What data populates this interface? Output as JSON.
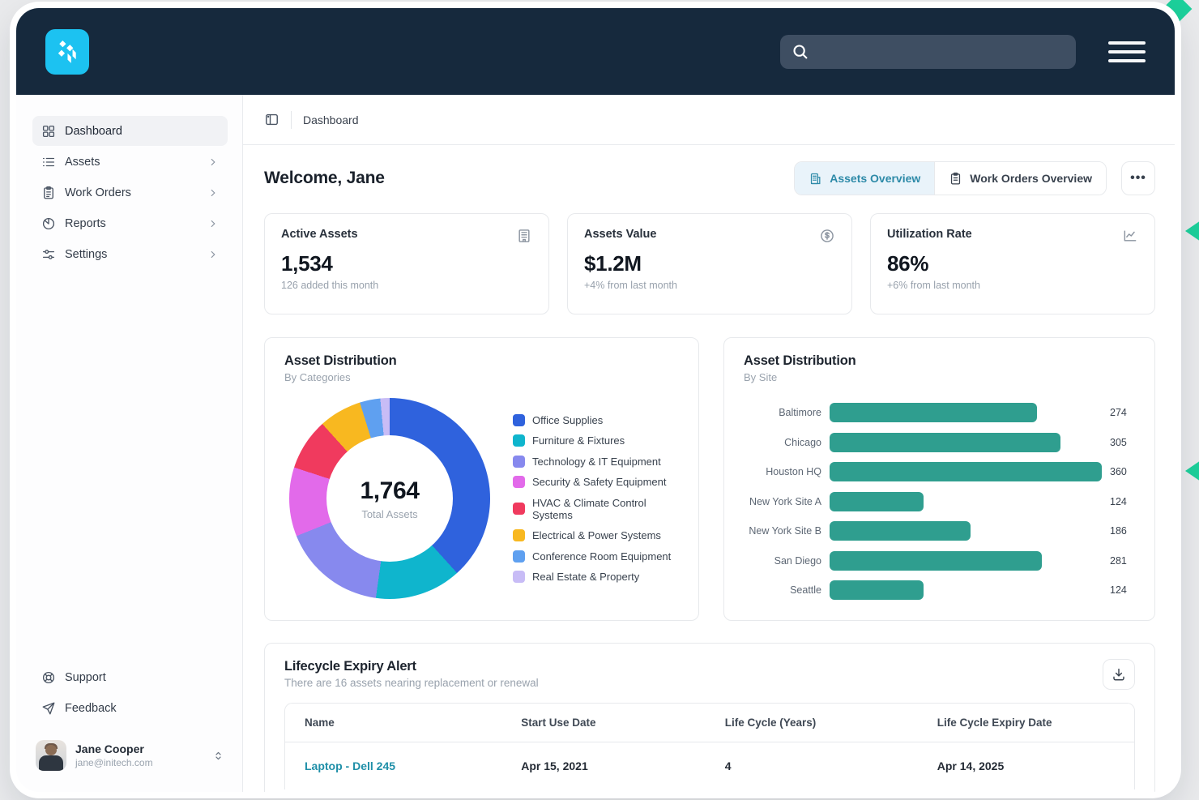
{
  "colors": {
    "topbar_navy": "#16293d",
    "logo_cyan": "#1cc2f1",
    "accent_teal_bar": "#2f9e8f",
    "link_teal": "#1f8fa8",
    "tab_active_bg": "#e9f3fa",
    "tab_active_text": "#2d8aa8",
    "deco_green": "#1cd09b"
  },
  "topbar": {
    "search": {
      "value": "",
      "placeholder": ""
    }
  },
  "sidebar": {
    "items": [
      {
        "label": "Dashboard",
        "icon": "grid-icon",
        "active": true,
        "chevron": false
      },
      {
        "label": "Assets",
        "icon": "list-icon",
        "active": false,
        "chevron": true
      },
      {
        "label": "Work Orders",
        "icon": "clipboard-icon",
        "active": false,
        "chevron": true
      },
      {
        "label": "Reports",
        "icon": "pie-chart-icon",
        "active": false,
        "chevron": true
      },
      {
        "label": "Settings",
        "icon": "sliders-icon",
        "active": false,
        "chevron": true
      }
    ],
    "footer_items": [
      {
        "label": "Support",
        "icon": "lifebuoy-icon"
      },
      {
        "label": "Feedback",
        "icon": "paper-plane-icon"
      }
    ],
    "user": {
      "name": "Jane Cooper",
      "email": "jane@initech.com"
    }
  },
  "breadcrumb": {
    "page": "Dashboard"
  },
  "header": {
    "welcome": "Welcome, Jane",
    "tabs": [
      {
        "label": "Assets Overview",
        "icon": "building-icon",
        "active": true
      },
      {
        "label": "Work Orders Overview",
        "icon": "clipboard-icon",
        "active": false
      }
    ],
    "more_label": "•••"
  },
  "stats": [
    {
      "title": "Active Assets",
      "value": "1,534",
      "subtitle": "126 added this month",
      "icon": "building-icon"
    },
    {
      "title": "Assets Value",
      "value": "$1.2M",
      "subtitle": "+4% from last month",
      "icon": "dollar-circle-icon"
    },
    {
      "title": "Utilization Rate",
      "value": "86%",
      "subtitle": "+6% from last month",
      "icon": "trend-chart-icon"
    }
  ],
  "donut_card": {
    "title": "Asset Distribution",
    "subtitle": "By Categories",
    "center_value": "1,764",
    "center_label": "Total Assets"
  },
  "bar_card": {
    "title": "Asset Distribution",
    "subtitle": "By Site"
  },
  "lifecycle": {
    "title": "Lifecycle Expiry Alert",
    "subtitle": "There are 16 assets nearing replacement or renewal",
    "columns": [
      "Name",
      "Start Use Date",
      "Life Cycle (Years)",
      "Life Cycle Expiry Date"
    ],
    "rows": [
      {
        "name": "Laptop - Dell 245",
        "start": "Apr 15, 2021",
        "years": "4",
        "expiry": "Apr 14, 2025"
      }
    ]
  },
  "chart_data": [
    {
      "type": "pie",
      "title": "Asset Distribution",
      "subtitle": "By Categories",
      "total": 1764,
      "center_label": "Total Assets",
      "legend_position": "right",
      "segments": [
        {
          "label": "Office Supplies",
          "color": "#2f62dd",
          "percent": 38.3
        },
        {
          "label": "Furniture & Fixtures",
          "color": "#0fb5cd",
          "percent": 13.9
        },
        {
          "label": "Technology & IT Equipment",
          "color": "#8789ee",
          "percent": 16.7
        },
        {
          "label": "Security & Safety Equipment",
          "color": "#e26aea",
          "percent": 11.1
        },
        {
          "label": "HVAC & Climate Control Systems",
          "color": "#f03a5e",
          "percent": 8.3
        },
        {
          "label": "Electrical & Power Systems",
          "color": "#f8b820",
          "percent": 6.9
        },
        {
          "label": "Conference Room Equipment",
          "color": "#5fa0f0",
          "percent": 3.3
        },
        {
          "label": "Real Estate & Property",
          "color": "#c8bcf6",
          "percent": 1.5
        }
      ]
    },
    {
      "type": "bar",
      "orientation": "horizontal",
      "title": "Asset Distribution",
      "subtitle": "By Site",
      "bar_color": "#2f9e8f",
      "xlim": [
        0,
        360
      ],
      "categories": [
        "Baltimore",
        "Chicago",
        "Houston HQ",
        "New York Site A",
        "New York Site B",
        "San Diego",
        "Seattle"
      ],
      "values": [
        274,
        305,
        360,
        124,
        186,
        281,
        124
      ]
    }
  ]
}
